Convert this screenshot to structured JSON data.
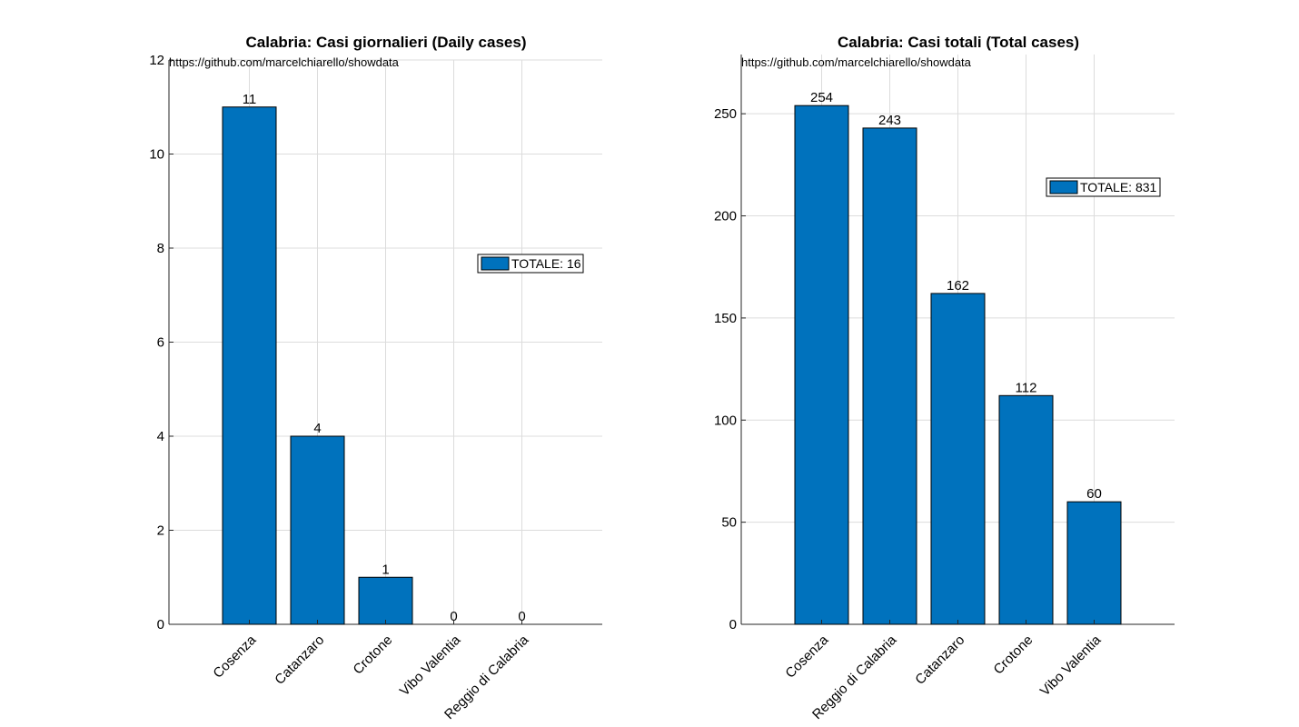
{
  "colors": {
    "bar": "#0072bd",
    "grid": "#dcdcdc",
    "axis": "#262626"
  },
  "chart_data": [
    {
      "type": "bar",
      "title": "Calabria: Casi giornalieri (Daily cases)",
      "source": "https://github.com/marcelchiarello/showdata",
      "categories": [
        "Cosenza",
        "Catanzaro",
        "Crotone",
        "Vibo Valentia",
        "Reggio di Calabria"
      ],
      "values": [
        11,
        4,
        1,
        0,
        0
      ],
      "data_labels": [
        "11",
        "4",
        "1",
        "0",
        "0"
      ],
      "ylim": [
        0,
        12
      ],
      "yticks": [
        0,
        2,
        4,
        6,
        8,
        10,
        12
      ],
      "legend": "TOTALE: 16",
      "legend_placement": "right-middle",
      "grid": true
    },
    {
      "type": "bar",
      "title": "Calabria: Casi totali (Total cases)",
      "source": "https://github.com/marcelchiarello/showdata",
      "categories": [
        "Cosenza",
        "Reggio di Calabria",
        "Catanzaro",
        "Crotone",
        "Vibo Valentia"
      ],
      "values": [
        254,
        243,
        162,
        112,
        60
      ],
      "data_labels": [
        "254",
        "243",
        "162",
        "112",
        "60"
      ],
      "ylim": [
        0,
        279
      ],
      "yticks": [
        0,
        50,
        100,
        150,
        200,
        250
      ],
      "legend": "TOTALE: 831",
      "legend_placement": "top-right",
      "grid": true
    }
  ]
}
